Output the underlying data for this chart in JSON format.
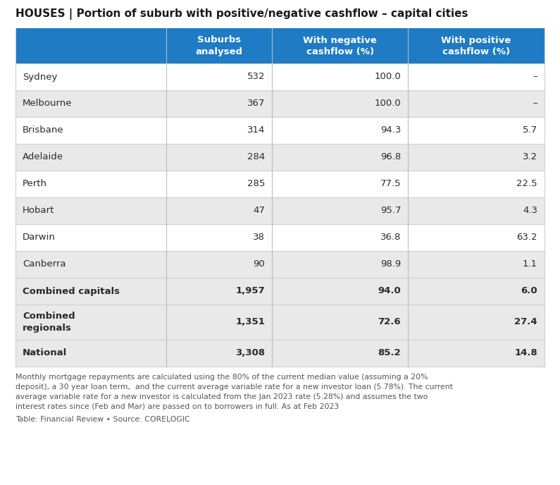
{
  "title": "HOUSES | Portion of suburb with positive/negative cashflow – capital cities",
  "header": [
    "",
    "Suburbs\nanalysed",
    "With negative\ncashflow (%)",
    "With positive\ncashflow (%)"
  ],
  "rows": [
    {
      "city": "Sydney",
      "suburbs": "532",
      "negative": "100.0",
      "positive": "–",
      "bold": false,
      "gray_bg": false
    },
    {
      "city": "Melbourne",
      "suburbs": "367",
      "negative": "100.0",
      "positive": "–",
      "bold": false,
      "gray_bg": true
    },
    {
      "city": "Brisbane",
      "suburbs": "314",
      "negative": "94.3",
      "positive": "5.7",
      "bold": false,
      "gray_bg": false
    },
    {
      "city": "Adelaide",
      "suburbs": "284",
      "negative": "96.8",
      "positive": "3.2",
      "bold": false,
      "gray_bg": true
    },
    {
      "city": "Perth",
      "suburbs": "285",
      "negative": "77.5",
      "positive": "22.5",
      "bold": false,
      "gray_bg": false
    },
    {
      "city": "Hobart",
      "suburbs": "47",
      "negative": "95.7",
      "positive": "4.3",
      "bold": false,
      "gray_bg": true
    },
    {
      "city": "Darwin",
      "suburbs": "38",
      "negative": "36.8",
      "positive": "63.2",
      "bold": false,
      "gray_bg": false
    },
    {
      "city": "Canberra",
      "suburbs": "90",
      "negative": "98.9",
      "positive": "1.1",
      "bold": false,
      "gray_bg": true
    },
    {
      "city": "Combined capitals",
      "suburbs": "1,957",
      "negative": "94.0",
      "positive": "6.0",
      "bold": true,
      "gray_bg": true
    },
    {
      "city": "Combined\nregionals",
      "suburbs": "1,351",
      "negative": "72.6",
      "positive": "27.4",
      "bold": true,
      "gray_bg": true
    },
    {
      "city": "National",
      "suburbs": "3,308",
      "negative": "85.2",
      "positive": "14.8",
      "bold": true,
      "gray_bg": true
    }
  ],
  "footer_text": "Monthly mortgage repayments are calculated using the 80% of the current median value (assuming a 20%\ndeposit), a 30 year loan term,  and the current average variable rate for a new investor loan (5.78%). The current\naverage variable rate for a new investor is calculated from the Jan 2023 rate (5.28%) and assumes the two\ninterest rates since (Feb and Mar) are passed on to borrowers in full. As at Feb 2023",
  "source_text": "Table: Financial Review • Source: CORELOGIC",
  "header_bg": "#1e7bc4",
  "header_text_color": "#ffffff",
  "row_bg_white": "#ffffff",
  "row_bg_gray": "#e9e9e9",
  "border_color": "#d0d0d0",
  "text_color": "#2a2a2a",
  "col_separator_color": "#bbbbbb",
  "title_color": "#1a1a1a",
  "footer_color": "#555555"
}
